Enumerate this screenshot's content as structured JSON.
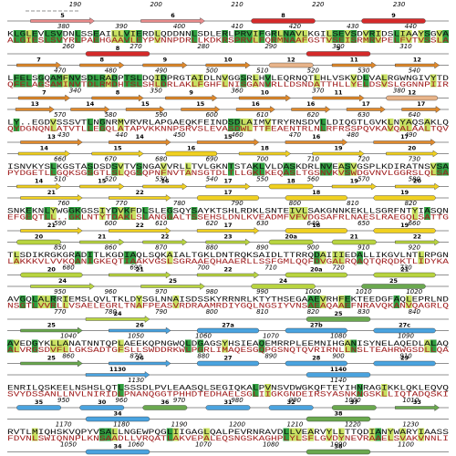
{
  "pre_numbers": [
    190,
    200,
    210,
    220,
    230
  ],
  "blocks": [
    {
      "top_elements": [
        {
          "label": "5",
          "kind": "strand",
          "color": "#e88a8a"
        },
        {
          "label": "6",
          "kind": "strand",
          "color": "#e88a8a"
        },
        {
          "label": "8",
          "kind": "helix",
          "color": "#d42a2a"
        },
        {
          "label": "9",
          "kind": "helix",
          "color": "#d42a2a"
        }
      ],
      "top_numbers": [
        380,
        390,
        400,
        410,
        420,
        430,
        440
      ],
      "seq1": "KLGLEVLSVDNLSSEAILLVIERDLQDDNNLSDLERLPRVIFGRLNAVLKGILSEVSDVRIDSLIAAYSGVA",
      "seq2": "ALGIESLSVYRLPAEHGAAVLEYPVNNPDRLLKDKRSPRVLFQRMNAAFGSTVSEISRMRVPELFVTVSSLA",
      "bottom_numbers": [
        260,
        270,
        280,
        290,
        300,
        310
      ],
      "bottom_elements": [
        {
          "label": "8",
          "kind": "helix",
          "color": "#d42a2a"
        },
        {
          "label": "9",
          "kind": "helix",
          "color": "#d42a2a"
        }
      ]
    },
    {
      "top_elements": [
        {
          "label": "7",
          "kind": "strand",
          "color": "#e0892b"
        },
        {
          "label": "8",
          "kind": "strand",
          "color": "#e0892b"
        },
        {
          "label": "9",
          "kind": "strand",
          "color": "#e0892b"
        },
        {
          "label": "10",
          "kind": "strand",
          "color": "#e0892b"
        },
        {
          "label": "12",
          "kind": "helix",
          "color": "#e8b48a"
        },
        {
          "label": "11",
          "kind": "strand",
          "color": "#e0892b"
        },
        {
          "label": "12",
          "kind": "strand",
          "color": "#e0892b"
        }
      ],
      "top_numbers": [
        470,
        480,
        490,
        500,
        510,
        520,
        530,
        540
      ],
      "seq1": "LFELSGQAMFNVSDLRADPTSLDQIDPRGTAIDLNVGGSRLHVLEQRNQTLHLVSKVDLVALRGWNGIVYTD",
      "seq2": "QFELAGSAMINVTDLRMDHTSLSHLDRLAKLFGHFLNISGANVRLLDSNDATTHLLYELDSVSLGGNNPIIR",
      "bottom_numbers": [
        340,
        350,
        360,
        370,
        380
      ],
      "bottom_elements": [
        {
          "label": "7",
          "kind": "strand",
          "color": "#e0892b"
        },
        {
          "label": "8",
          "kind": "strand",
          "color": "#e0892b"
        },
        {
          "label": "9",
          "kind": "strand",
          "color": "#e0892b"
        },
        {
          "label": "10",
          "kind": "strand",
          "color": "#e0892b"
        },
        {
          "label": "11",
          "kind": "strand",
          "color": "#e0892b"
        },
        {
          "label": "12",
          "kind": "helix",
          "color": "#e8b48a"
        }
      ]
    },
    {
      "top_elements": [
        {
          "label": "13",
          "kind": "strand",
          "color": "#e0892b"
        },
        {
          "label": "14",
          "kind": "strand",
          "color": "#e0892b"
        },
        {
          "label": "15",
          "kind": "strand",
          "color": "#e0892b"
        },
        {
          "label": "15",
          "kind": "strand",
          "color": "#e0892b"
        },
        {
          "label": "16",
          "kind": "strand",
          "color": "#e0892b"
        },
        {
          "label": "16",
          "kind": "strand",
          "color": "#e0892b"
        },
        {
          "label": "17",
          "kind": "strand",
          "color": "#e0892b"
        },
        {
          "label": "17",
          "kind": "strand",
          "color": "#e0892b"
        }
      ],
      "top_numbers": [
        570,
        580,
        590,
        600,
        610,
        620,
        630,
        640
      ],
      "seq1": "LY..EGDVSSSVTLNGNRMVRVRLAPGAEQKFEINDSDLAIMVTRYRNSDVLLDIQGTLGVKLNYAQSAKLQ",
      "seq2": "QYDGNQNLATVTLLEGQLATAPVKKNNPSRVSLEVASDWLTTFEAENTRLNLRFRSSPQVKAVQALAALTQV",
      "bottom_numbers": [
        430,
        440,
        450,
        460,
        470,
        480,
        490
      ],
      "bottom_elements": [
        {
          "label": "13",
          "kind": "strand",
          "color": "#e0892b"
        },
        {
          "label": "14",
          "kind": "strand",
          "color": "#e0892b"
        },
        {
          "label": "15",
          "kind": "strand",
          "color": "#e0892b"
        },
        {
          "label": "16",
          "kind": "strand",
          "color": "#e0892b"
        },
        {
          "label": "17",
          "kind": "strand",
          "color": "#e0892b"
        }
      ]
    },
    {
      "top_elements": [
        {
          "label": "14",
          "kind": "strand",
          "color": "#f0d020"
        },
        {
          "label": "15",
          "kind": "strand",
          "color": "#f0d020"
        },
        {
          "label": "16",
          "kind": "helix",
          "color": "#f0d020"
        },
        {
          "label": "18",
          "kind": "strand",
          "color": "#f0d020"
        },
        {
          "label": "19",
          "kind": "strand",
          "color": "#f0d020"
        },
        {
          "label": "20",
          "kind": "strand",
          "color": "#f0d020"
        }
      ],
      "top_numbers": [
        660,
        670,
        680,
        690,
        700,
        710,
        720,
        730
      ],
      "seq1": "ISNVKYSLKGSTASDSDSVTVSNGAVVRLLTVLGKNTSTAKLVLDASKDRLNVEASVGSPLKDIRATNSVSA",
      "seq2": "PYDGETLLGQKSGSGTLSLQGSQPNFNVTANSGTDLTLLGKLKEQASLTGSNVKVSWDGVNVLGGRSLQLSA",
      "bottom_numbers": [
        510,
        520,
        530,
        540,
        550,
        560,
        570,
        580
      ],
      "bottom_elements": [
        {
          "label": "14",
          "kind": "strand",
          "color": "#f0d020"
        },
        {
          "label": "15",
          "kind": "strand",
          "color": "#f0d020"
        },
        {
          "label": "16",
          "kind": "strand",
          "color": "#f0d020"
        },
        {
          "label": "17",
          "kind": "strand",
          "color": "#f0d020"
        },
        {
          "label": "18",
          "kind": "helix",
          "color": "#f0d020"
        },
        {
          "label": "19",
          "kind": "strand",
          "color": "#f0d020"
        },
        {
          "label": "20",
          "kind": "strand",
          "color": "#f0d020"
        }
      ]
    },
    {
      "top_elements": [
        {
          "label": "21",
          "kind": "strand",
          "color": "#f0d020"
        },
        {
          "label": "22",
          "kind": "strand",
          "color": "#f0d020"
        },
        {
          "label": "17",
          "kind": "helix",
          "color": "#f0d020"
        },
        {
          "label": "18",
          "kind": "helix",
          "color": "#f0d020"
        },
        {
          "label": "19",
          "kind": "helix",
          "color": "#f0d020"
        }
      ],
      "top_numbers": [
        760,
        770,
        780,
        790,
        800,
        810,
        820
      ],
      "seq1": "SNKEKNLYWGGKGSSIYDVKFDLSLEGSQYSAYKTSHLRDKLSNTEIVLSAKGNNKEKLLSGRFNTYIASQN",
      "seq2": "EFGEQTLL..GKLNTYTDAKLSLANGGALTSSEHSLDNLKVEADMFVFVDGSAFRLNAESLRAEGQLSATTG",
      "bottom_numbers": [
        590,
        600,
        610,
        620,
        630,
        640,
        650,
        660
      ],
      "bottom_elements": [
        {
          "label": "21",
          "kind": "strand",
          "color": "#f0d020"
        },
        {
          "label": "22",
          "kind": "strand",
          "color": "#f0d020"
        },
        {
          "label": "17",
          "kind": "strand",
          "color": "#f0d020"
        },
        {
          "label": "18",
          "kind": "helix",
          "color": "#f0d020"
        },
        {
          "label": "19",
          "kind": "helix",
          "color": "#f0d020"
        }
      ]
    },
    {
      "top_elements": [
        {
          "label": "20",
          "kind": "helix",
          "color": "#b8d440"
        },
        {
          "label": "21",
          "kind": "strand",
          "color": "#b8d440"
        },
        {
          "label": "22",
          "kind": "strand",
          "color": "#b8d440"
        },
        {
          "label": "23",
          "kind": "strand",
          "color": "#b8d440"
        },
        {
          "label": "20a",
          "kind": "helix",
          "color": "#b8d440"
        },
        {
          "label": "21",
          "kind": "helix",
          "color": "#b8d440"
        },
        {
          "label": "22",
          "kind": "strand",
          "color": "#b8d440"
        }
      ],
      "top_numbers": [
        850,
        860,
        870,
        880,
        890,
        900,
        910,
        920
      ],
      "seq1": "TLSDIKRGKGRADITLKGDIAQLSQKAIALTGKLDNTRQKSAIDLTTRRQDAIIIEDALLIKGVLNTLRPGN",
      "seq2": "LAKKKVLVVKQANIGKEQTIAAKVGSLSGRAAEQHAAERLLSSFGMLQQFDVGALRQAQTQRQDKTLIDYKA",
      "bottom_numbers": [
        680,
        690,
        700,
        710,
        720,
        730
      ],
      "bottom_elements": [
        {
          "label": "20",
          "kind": "helix",
          "color": "#b8d440"
        },
        {
          "label": "21",
          "kind": "strand",
          "color": "#b8d440"
        },
        {
          "label": "22",
          "kind": "strand",
          "color": "#b8d440"
        },
        {
          "label": "20a",
          "kind": "helix",
          "color": "#b8d440"
        },
        {
          "label": "21",
          "kind": "helix",
          "color": "#b8d440"
        }
      ]
    },
    {
      "top_elements": [
        {
          "label": "24",
          "kind": "strand",
          "color": "#b8d440"
        },
        {
          "label": "25",
          "kind": "strand",
          "color": "#b8d440"
        },
        {
          "label": "24",
          "kind": "helix",
          "color": "#b8d440"
        },
        {
          "label": "25",
          "kind": "helix",
          "color": "#6aa84f"
        }
      ],
      "top_numbers": [
        950,
        960,
        970,
        980,
        990,
        1000,
        1010,
        1020
      ],
      "seq1": "AVGQLALRRIEMSLQVLTKLDYSGLNNAISDSSKYRRNRLKTYTHSEGAAEVRHFEKTEEDGFAQLEPRLND",
      "seq2": "NSGTLVVRLLVSAELEGRLTNAFPEASVRDRAAMRDIYGQLNGSIYVNSAEAQAAEFNRAVQKANVQAGRLQ",
      "bottom_numbers": [
        770,
        780,
        790,
        800,
        810,
        820,
        830,
        840
      ],
      "bottom_elements": [
        {
          "label": "24",
          "kind": "strand",
          "color": "#b8d440"
        },
        {
          "label": "25",
          "kind": "helix",
          "color": "#6aa84f"
        }
      ]
    },
    {
      "top_elements": [
        {
          "label": "25",
          "kind": "strand",
          "color": "#6aa84f"
        },
        {
          "label": "26",
          "kind": "strand",
          "color": "#4aa3df"
        },
        {
          "label": "27a",
          "kind": "helix",
          "color": "#4aa3df"
        },
        {
          "label": "27b",
          "kind": "helix",
          "color": "#4aa3df"
        },
        {
          "label": "27c",
          "kind": "helix",
          "color": "#4aa3df"
        }
      ],
      "top_numbers": [
        1040,
        1050,
        1060,
        1070,
        1080,
        1090
      ],
      "seq1": "AVEDGYKLLANATNNTQPLAEEKQPNGWQLDGAGSYHSIEAQEMRRPLEEMNIHGANISYNELAQEDLALAQ",
      "seq2": "ALVRGSDVFLLGKSADTGFSLLSWDDRKWLPGRLIMAQESGQPGSNQTQVRIRNLLNSLTEAHRWGSDLLQA",
      "bottom_numbers": [
        860,
        870,
        880,
        890,
        900,
        910
      ],
      "bottom_elements": [
        {
          "label": "25",
          "kind": "strand",
          "color": "#6aa84f"
        },
        {
          "label": "26",
          "kind": "strand",
          "color": "#4aa3df"
        },
        {
          "label": "27",
          "kind": "helix",
          "color": "#4aa3df"
        },
        {
          "label": "28",
          "kind": "helix",
          "color": "#4aa3df"
        },
        {
          "label": "29",
          "kind": "helix",
          "color": "#4aa3df"
        }
      ]
    },
    {
      "top_elements": [
        {
          "label": "1130",
          "kind": "strand",
          "color": "#4aa3df"
        },
        {
          "label": "1140",
          "kind": "helix",
          "color": "#4aa3df"
        }
      ],
      "top_numbers": [
        1130,
        1140
      ],
      "seq1": "ENRILQSKEELNSHSLQTLSSSDLPVLEAASQLSEGIQKALPVNSVDWGKQFTEYIHNRAGIKKLQKLEQVQ",
      "seq2": "SVYDSSANLLNVLNIRIDLPNANQGGTPHHDTEDHAELSGLIIGKGNDEIRSYASNKNGSKLLIQTADQSKI",
      "bottom_numbers": [
        950,
        960,
        970,
        980,
        990,
        1000,
        1010
      ],
      "bottom_elements": [
        {
          "label": "35",
          "kind": "helix",
          "color": "#4aa3df"
        },
        {
          "label": "30",
          "kind": "helix",
          "color": "#4aa3df"
        },
        {
          "label": "36",
          "kind": "helix",
          "color": "#6aa84f"
        },
        {
          "label": "31",
          "kind": "helix",
          "color": "#4aa3df"
        },
        {
          "label": "32",
          "kind": "helix",
          "color": "#4aa3df"
        },
        {
          "label": "37",
          "kind": "helix",
          "color": "#6aa84f"
        },
        {
          "label": "33",
          "kind": "strand",
          "color": "#6aa84f"
        }
      ]
    },
    {
      "top_elements": [
        {
          "label": "34",
          "kind": "helix",
          "color": "#4aa3df"
        },
        {
          "label": "38",
          "kind": "helix",
          "color": "#6aa84f"
        }
      ],
      "top_numbers": [
        1170,
        1180,
        1190,
        1200,
        1210,
        1220,
        1230
      ],
      "seq1": "RVTLMIQHSKVQPYVSALLNGEWPQGLIIGAGLQALPEVRNRAVDLLVEARVYLLTTQDIANYWARYIAASS",
      "seq2": "FDVNLSWIQNNPLKNSAADLLVRQATLAKVEPALEQSNGSKAGHPLYLSFLGVDYNEVRAAELSVAKVNNLI",
      "bottom_numbers": [
        1050,
        1060,
        1070,
        1080,
        1090,
        1100
      ],
      "bottom_elements": [
        {
          "label": "34",
          "kind": "helix",
          "color": "#4aa3df"
        },
        {
          "label": "38",
          "kind": "helix",
          "color": "#6aa84f"
        }
      ]
    }
  ]
}
